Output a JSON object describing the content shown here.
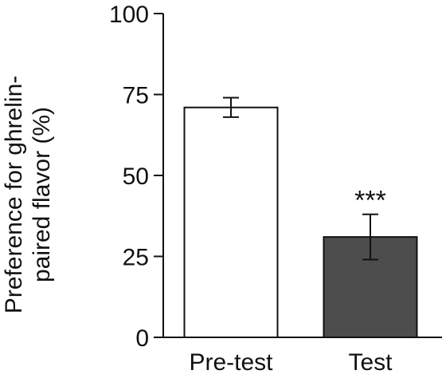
{
  "chart_data": {
    "type": "bar",
    "categories": [
      "Pre-test",
      "Test"
    ],
    "values": [
      71,
      31
    ],
    "errors": [
      3,
      7
    ],
    "colors": [
      "#ffffff",
      "#4d4d4d"
    ],
    "ylabel_lines": [
      "Preference for ghrelin-",
      "paired flavor (%)"
    ],
    "ylim": [
      0,
      100
    ],
    "yticks": [
      "0",
      "25",
      "50",
      "75",
      "100"
    ],
    "annotations": [
      {
        "category": "Test",
        "text": "***"
      }
    ],
    "grid": false,
    "legend": "none"
  }
}
